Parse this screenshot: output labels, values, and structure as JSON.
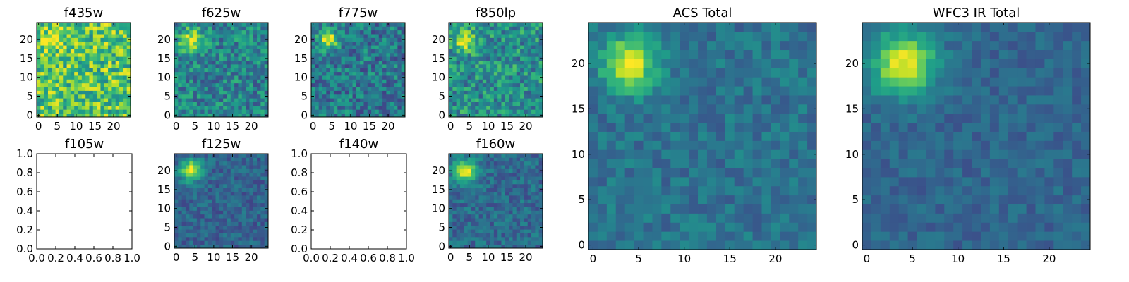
{
  "chart_data": [
    {
      "type": "heatmap",
      "title": "f435w",
      "grid_size": 25,
      "colormap": "viridis",
      "xlim": [
        -0.5,
        24.5
      ],
      "ylim": [
        -0.5,
        24.5
      ],
      "xticks": [
        0,
        5,
        10,
        15,
        20
      ],
      "yticks": [
        0,
        5,
        10,
        15,
        20
      ],
      "intensity_mean": 0.72,
      "intensity_noise": 0.45,
      "source": {
        "x": 4,
        "y": 20,
        "sigma": 2.2,
        "amplitude": 0.2
      }
    },
    {
      "type": "heatmap",
      "title": "f625w",
      "grid_size": 25,
      "colormap": "viridis",
      "xlim": [
        -0.5,
        24.5
      ],
      "ylim": [
        -0.5,
        24.5
      ],
      "xticks": [
        0,
        5,
        10,
        15,
        20
      ],
      "yticks": [
        0,
        5,
        10,
        15,
        20
      ],
      "intensity_mean": 0.45,
      "intensity_noise": 0.35,
      "source": {
        "x": 4,
        "y": 20,
        "sigma": 2.2,
        "amplitude": 0.45
      }
    },
    {
      "type": "heatmap",
      "title": "f775w",
      "grid_size": 25,
      "colormap": "viridis",
      "xlim": [
        -0.5,
        24.5
      ],
      "ylim": [
        -0.5,
        24.5
      ],
      "xticks": [
        0,
        5,
        10,
        15,
        20
      ],
      "yticks": [
        0,
        5,
        10,
        15,
        20
      ],
      "intensity_mean": 0.4,
      "intensity_noise": 0.35,
      "source": {
        "x": 4,
        "y": 20,
        "sigma": 1.7,
        "amplitude": 0.6
      }
    },
    {
      "type": "heatmap",
      "title": "f850lp",
      "grid_size": 25,
      "colormap": "viridis",
      "xlim": [
        -0.5,
        24.5
      ],
      "ylim": [
        -0.5,
        24.5
      ],
      "xticks": [
        0,
        5,
        10,
        15,
        20
      ],
      "yticks": [
        0,
        5,
        10,
        15,
        20
      ],
      "intensity_mean": 0.5,
      "intensity_noise": 0.38,
      "source": {
        "x": 4,
        "y": 20,
        "sigma": 2.0,
        "amplitude": 0.5
      }
    },
    {
      "type": "empty",
      "title": "f105w",
      "xlim": [
        0,
        1
      ],
      "ylim": [
        0,
        1
      ],
      "xticks": [
        "0.0",
        "0.2",
        "0.4",
        "0.6",
        "0.8",
        "1.0"
      ],
      "yticks": [
        "0.0",
        "0.2",
        "0.4",
        "0.6",
        "0.8",
        "1.0"
      ]
    },
    {
      "type": "heatmap",
      "title": "f125w",
      "grid_size": 25,
      "colormap": "viridis",
      "xlim": [
        -0.5,
        24.5
      ],
      "ylim": [
        -0.5,
        24.5
      ],
      "xticks": [
        0,
        5,
        10,
        15,
        20
      ],
      "yticks": [
        0,
        5,
        10,
        15,
        20
      ],
      "intensity_mean": 0.32,
      "intensity_noise": 0.2,
      "source": {
        "x": 4,
        "y": 20,
        "sigma": 2.0,
        "amplitude": 0.65
      }
    },
    {
      "type": "empty",
      "title": "f140w",
      "xlim": [
        0,
        1
      ],
      "ylim": [
        0,
        1
      ],
      "xticks": [
        "0.0",
        "0.2",
        "0.4",
        "0.6",
        "0.8",
        "1.0"
      ],
      "yticks": [
        "0.0",
        "0.2",
        "0.4",
        "0.6",
        "0.8",
        "1.0"
      ]
    },
    {
      "type": "heatmap",
      "title": "f160w",
      "grid_size": 25,
      "colormap": "viridis",
      "xlim": [
        -0.5,
        24.5
      ],
      "ylim": [
        -0.5,
        24.5
      ],
      "xticks": [
        0,
        5,
        10,
        15,
        20
      ],
      "yticks": [
        0,
        5,
        10,
        15,
        20
      ],
      "intensity_mean": 0.35,
      "intensity_noise": 0.22,
      "source": {
        "x": 4,
        "y": 20,
        "sigma": 2.1,
        "amplitude": 0.6
      }
    },
    {
      "type": "heatmap",
      "title": "ACS Total",
      "grid_size": 25,
      "colormap": "viridis",
      "xlim": [
        -0.5,
        24.5
      ],
      "ylim": [
        -0.5,
        24.5
      ],
      "xticks": [
        0,
        5,
        10,
        15,
        20
      ],
      "yticks": [
        0,
        5,
        10,
        15,
        20
      ],
      "intensity_mean": 0.38,
      "intensity_noise": 0.18,
      "source": {
        "x": 4,
        "y": 20,
        "sigma": 2.0,
        "amplitude": 0.6
      }
    },
    {
      "type": "heatmap",
      "title": "WFC3 IR Total",
      "grid_size": 25,
      "colormap": "viridis",
      "xlim": [
        -0.5,
        24.5
      ],
      "ylim": [
        -0.5,
        24.5
      ],
      "xticks": [
        0,
        5,
        10,
        15,
        20
      ],
      "yticks": [
        0,
        5,
        10,
        15,
        20
      ],
      "intensity_mean": 0.33,
      "intensity_noise": 0.14,
      "source": {
        "x": 4,
        "y": 20,
        "sigma": 2.4,
        "amplitude": 0.65
      }
    }
  ]
}
